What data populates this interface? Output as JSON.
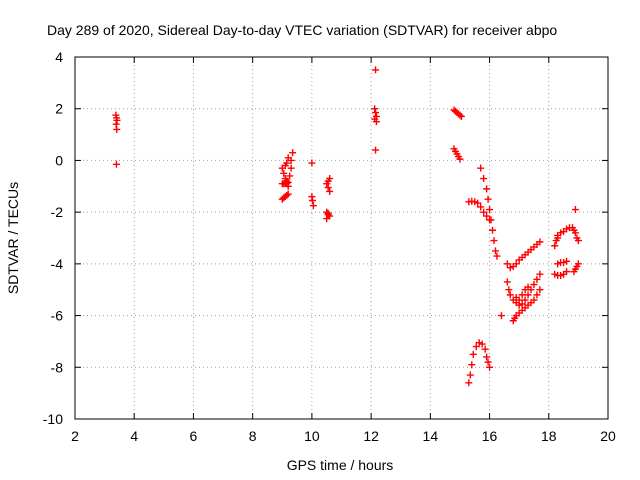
{
  "chart_data": {
    "type": "scatter",
    "title": "Day 289 of 2020, Sidereal Day-to-day VTEC variation (SDTVAR) for receiver abpo",
    "xlabel": "GPS time / hours",
    "ylabel": "SDTVAR / TECUs",
    "xlim": [
      2,
      20
    ],
    "ylim": [
      -10,
      4
    ],
    "xticks": [
      2,
      4,
      6,
      8,
      10,
      12,
      14,
      16,
      18,
      20
    ],
    "yticks": [
      -10,
      -8,
      -6,
      -4,
      -2,
      0,
      2,
      4
    ],
    "xtick_labels": [
      "2",
      "4",
      "6",
      "8",
      "10",
      "12",
      "14",
      "16",
      "18",
      "20"
    ],
    "ytick_labels": [
      "-10",
      "-8",
      "-6",
      "-4",
      "-2",
      "0",
      "2",
      "4"
    ],
    "grid": true,
    "marker": "+",
    "marker_color": "#ff0000",
    "series": [
      {
        "name": "SDTVAR",
        "points": [
          [
            3.38,
            1.75
          ],
          [
            3.4,
            1.65
          ],
          [
            3.42,
            1.55
          ],
          [
            3.39,
            1.4
          ],
          [
            3.41,
            1.2
          ],
          [
            3.4,
            -0.15
          ],
          [
            9.0,
            -0.3
          ],
          [
            9.05,
            -0.5
          ],
          [
            9.1,
            -0.7
          ],
          [
            9.15,
            -0.9
          ],
          [
            9.2,
            -1.0
          ],
          [
            9.25,
            -0.6
          ],
          [
            9.3,
            -0.3
          ],
          [
            9.3,
            0.0
          ],
          [
            9.35,
            0.3
          ],
          [
            9.0,
            -0.9
          ],
          [
            9.05,
            -0.9
          ],
          [
            9.1,
            -0.85
          ],
          [
            9.15,
            -0.8
          ],
          [
            9.2,
            -0.85
          ],
          [
            9.0,
            -1.5
          ],
          [
            9.05,
            -1.45
          ],
          [
            9.1,
            -1.4
          ],
          [
            9.15,
            -1.35
          ],
          [
            9.2,
            -1.3
          ],
          [
            9.1,
            -0.2
          ],
          [
            9.15,
            -0.1
          ],
          [
            9.2,
            0.1
          ],
          [
            10.0,
            -0.1
          ],
          [
            10.0,
            -1.4
          ],
          [
            10.02,
            -1.55
          ],
          [
            10.05,
            -1.75
          ],
          [
            10.5,
            -0.9
          ],
          [
            10.55,
            -1.05
          ],
          [
            10.6,
            -1.2
          ],
          [
            10.55,
            -0.8
          ],
          [
            10.6,
            -0.7
          ],
          [
            10.5,
            -2.0
          ],
          [
            10.55,
            -2.05
          ],
          [
            10.6,
            -2.15
          ],
          [
            10.5,
            -2.25
          ],
          [
            10.55,
            -2.1
          ],
          [
            12.15,
            3.5
          ],
          [
            12.12,
            2.0
          ],
          [
            12.15,
            1.85
          ],
          [
            12.18,
            1.7
          ],
          [
            12.12,
            1.6
          ],
          [
            12.18,
            1.5
          ],
          [
            12.15,
            0.4
          ],
          [
            14.8,
            1.95
          ],
          [
            14.85,
            1.9
          ],
          [
            14.9,
            1.85
          ],
          [
            14.95,
            1.8
          ],
          [
            15.0,
            1.75
          ],
          [
            15.05,
            1.7
          ],
          [
            14.8,
            0.45
          ],
          [
            14.85,
            0.35
          ],
          [
            14.9,
            0.25
          ],
          [
            14.95,
            0.15
          ],
          [
            15.0,
            0.05
          ],
          [
            15.3,
            -1.6
          ],
          [
            15.4,
            -1.58
          ],
          [
            15.5,
            -1.6
          ],
          [
            15.6,
            -1.65
          ],
          [
            15.7,
            -1.8
          ],
          [
            15.8,
            -2.0
          ],
          [
            15.9,
            -2.15
          ],
          [
            16.0,
            -2.3
          ],
          [
            15.7,
            -0.3
          ],
          [
            15.8,
            -0.7
          ],
          [
            15.9,
            -1.1
          ],
          [
            15.95,
            -1.5
          ],
          [
            16.0,
            -1.9
          ],
          [
            16.05,
            -2.3
          ],
          [
            16.1,
            -2.7
          ],
          [
            16.15,
            -3.1
          ],
          [
            16.2,
            -3.5
          ],
          [
            16.25,
            -3.7
          ],
          [
            15.3,
            -8.6
          ],
          [
            15.35,
            -8.3
          ],
          [
            15.4,
            -7.9
          ],
          [
            15.45,
            -7.5
          ],
          [
            15.55,
            -7.2
          ],
          [
            15.65,
            -7.05
          ],
          [
            15.75,
            -7.1
          ],
          [
            15.85,
            -7.3
          ],
          [
            15.9,
            -7.6
          ],
          [
            15.95,
            -7.8
          ],
          [
            16.0,
            -8.0
          ],
          [
            16.4,
            -6.0
          ],
          [
            16.6,
            -4.0
          ],
          [
            16.7,
            -4.15
          ],
          [
            16.8,
            -4.1
          ],
          [
            16.9,
            -4.0
          ],
          [
            17.0,
            -3.85
          ],
          [
            17.1,
            -3.75
          ],
          [
            17.2,
            -3.65
          ],
          [
            17.3,
            -3.55
          ],
          [
            17.4,
            -3.45
          ],
          [
            17.5,
            -3.35
          ],
          [
            17.6,
            -3.25
          ],
          [
            17.7,
            -3.15
          ],
          [
            16.6,
            -4.7
          ],
          [
            16.65,
            -5.0
          ],
          [
            16.7,
            -5.2
          ],
          [
            16.8,
            -5.4
          ],
          [
            16.9,
            -5.5
          ],
          [
            17.0,
            -5.6
          ],
          [
            17.1,
            -5.55
          ],
          [
            17.2,
            -5.4
          ],
          [
            17.3,
            -5.2
          ],
          [
            17.4,
            -5.0
          ],
          [
            17.5,
            -4.8
          ],
          [
            17.6,
            -4.6
          ],
          [
            17.7,
            -4.4
          ],
          [
            16.8,
            -6.2
          ],
          [
            16.85,
            -6.1
          ],
          [
            16.9,
            -6.0
          ],
          [
            17.0,
            -5.9
          ],
          [
            17.1,
            -5.8
          ],
          [
            17.2,
            -5.7
          ],
          [
            17.3,
            -5.6
          ],
          [
            17.4,
            -5.5
          ],
          [
            17.5,
            -5.4
          ],
          [
            17.6,
            -5.2
          ],
          [
            17.7,
            -5.0
          ],
          [
            16.9,
            -5.3
          ],
          [
            17.0,
            -5.4
          ],
          [
            17.1,
            -5.2
          ],
          [
            17.2,
            -5.0
          ],
          [
            17.3,
            -4.9
          ],
          [
            18.3,
            -2.9
          ],
          [
            18.4,
            -2.8
          ],
          [
            18.5,
            -2.75
          ],
          [
            18.6,
            -2.65
          ],
          [
            18.7,
            -2.6
          ],
          [
            18.8,
            -2.6
          ],
          [
            18.2,
            -3.3
          ],
          [
            18.25,
            -3.1
          ],
          [
            18.3,
            -3.0
          ],
          [
            18.2,
            -4.4
          ],
          [
            18.3,
            -4.45
          ],
          [
            18.4,
            -4.45
          ],
          [
            18.5,
            -4.4
          ],
          [
            18.6,
            -4.3
          ],
          [
            18.3,
            -4.0
          ],
          [
            18.4,
            -3.95
          ],
          [
            18.5,
            -3.95
          ],
          [
            18.6,
            -3.9
          ],
          [
            18.85,
            -4.3
          ],
          [
            18.9,
            -4.2
          ],
          [
            18.95,
            -4.1
          ],
          [
            19.0,
            -4.0
          ],
          [
            18.9,
            -1.9
          ],
          [
            18.85,
            -2.7
          ],
          [
            18.9,
            -2.8
          ],
          [
            18.95,
            -3.0
          ],
          [
            19.0,
            -3.1
          ]
        ]
      }
    ]
  }
}
